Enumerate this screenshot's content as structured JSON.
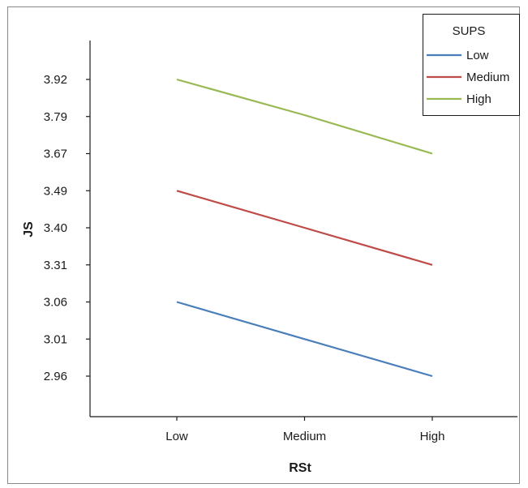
{
  "chart_data": {
    "type": "line",
    "title": "",
    "xlabel": "RSt",
    "ylabel": "JS",
    "categories": [
      "Low",
      "Medium",
      "High"
    ],
    "y_tick_labels": [
      "3.92",
      "3.79",
      "3.67",
      "3.49",
      "3.40",
      "3.31",
      "3.06",
      "3.01",
      "2.96"
    ],
    "series": [
      {
        "name": "Low",
        "color": "#4a7ebb",
        "values": [
          3.06,
          3.01,
          2.96
        ]
      },
      {
        "name": "Medium",
        "color": "#be4b48",
        "values": [
          3.49,
          3.4,
          3.31
        ]
      },
      {
        "name": "High",
        "color": "#98b954",
        "values": [
          3.92,
          3.795,
          3.67
        ]
      }
    ],
    "legend": {
      "title": "SUPS",
      "placement": "top-right"
    },
    "grid": false
  }
}
